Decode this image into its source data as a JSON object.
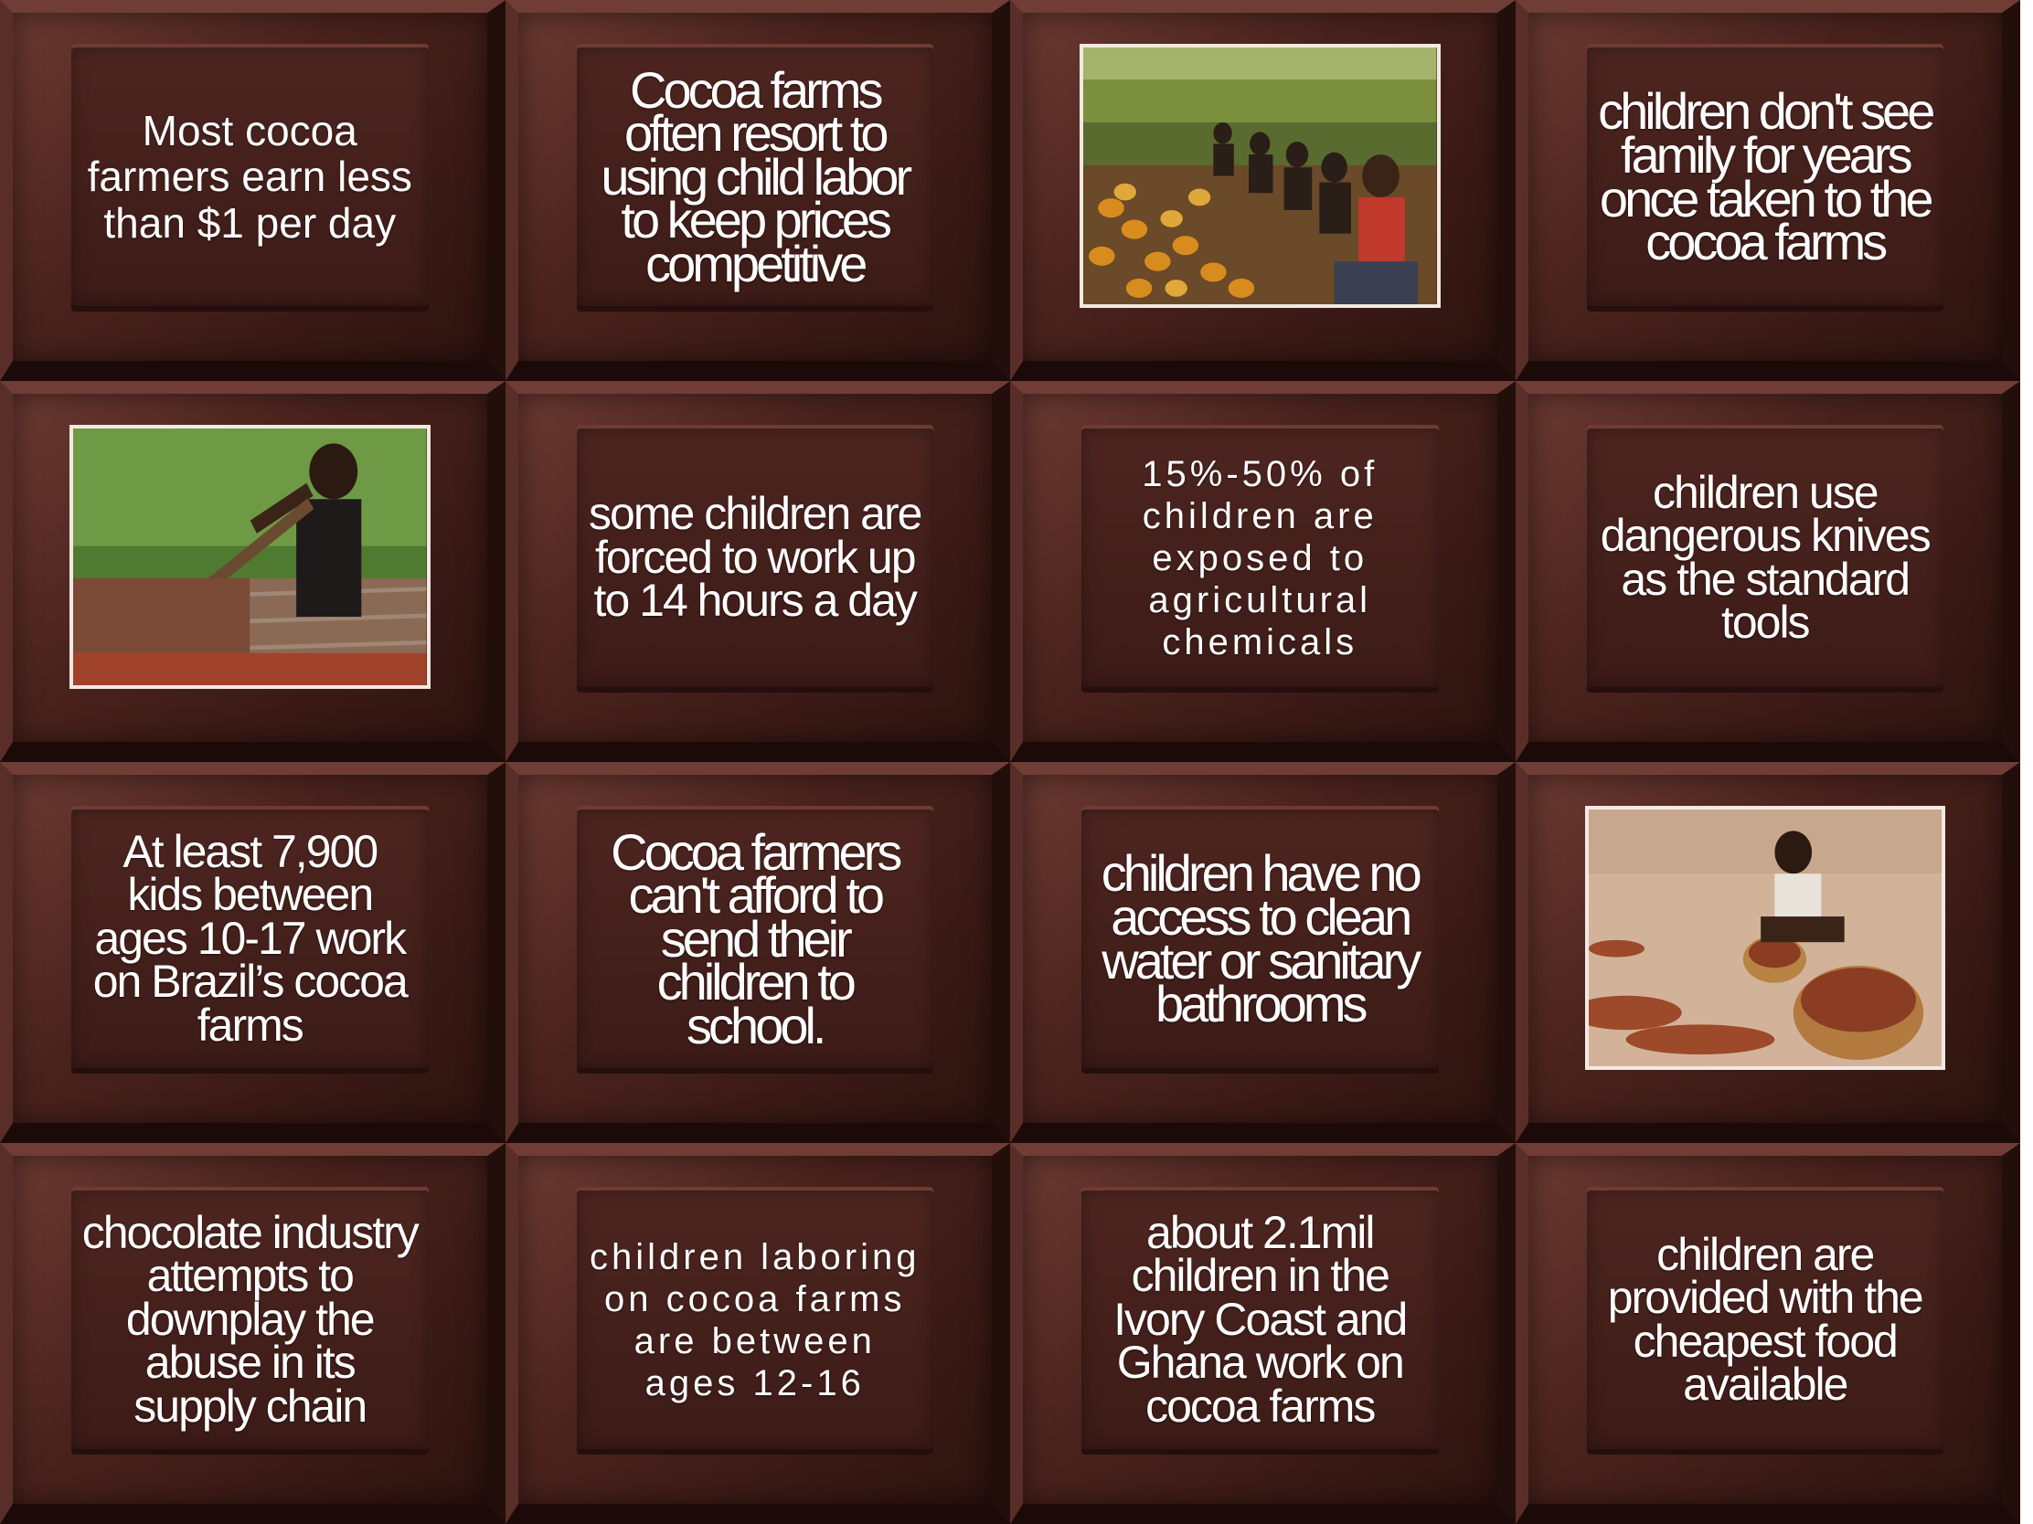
{
  "tiles": [
    {
      "type": "text",
      "text": "Most cocoa farmers earn less than $1 per day",
      "style": "loose"
    },
    {
      "type": "text",
      "text": "Cocoa farms often resort to using child labor to keep prices competitive",
      "style": "tight"
    },
    {
      "type": "photo",
      "subject": "children-sorting-cocoa-pods-photo"
    },
    {
      "type": "text",
      "text": "children don't see family for years once taken to the cocoa farms",
      "style": "tight"
    },
    {
      "type": "photo",
      "subject": "boy-raking-cocoa-beans-photo"
    },
    {
      "type": "text",
      "text": "some children are forced to work up to 14 hours a day",
      "style": "normal"
    },
    {
      "type": "text",
      "text": "15%-50% of children are exposed to agricultural chemicals",
      "style": "spaced"
    },
    {
      "type": "text",
      "text": "children use dangerous knives as the standard tools",
      "style": "normal"
    },
    {
      "type": "text",
      "text": "At least 7,900 kids between ages 10-17 work on Brazil’s cocoa farms",
      "style": "normal"
    },
    {
      "type": "text",
      "text": "Cocoa farmers can't afford to send their children to school.",
      "style": "tight"
    },
    {
      "type": "text",
      "text": "children have no access to clean water or sanitary bathrooms",
      "style": "tight"
    },
    {
      "type": "photo",
      "subject": "child-scooping-cocoa-beans-photo"
    },
    {
      "type": "text",
      "text": "chocolate industry attempts to downplay the abuse in its supply chain",
      "style": "normal"
    },
    {
      "type": "text",
      "text": "children laboring on cocoa farms are between ages 12-16",
      "style": "spaced"
    },
    {
      "type": "text",
      "text": "about 2.1mil children in the Ivory Coast and Ghana work on cocoa farms",
      "style": "normal"
    },
    {
      "type": "text",
      "text": "children are provided with the cheapest food available",
      "style": "normal"
    }
  ],
  "colors": {
    "chocolate_light": "#6b3a32",
    "chocolate_dark": "#2d130f",
    "tile": "#4d2520",
    "text": "#ffffff"
  }
}
